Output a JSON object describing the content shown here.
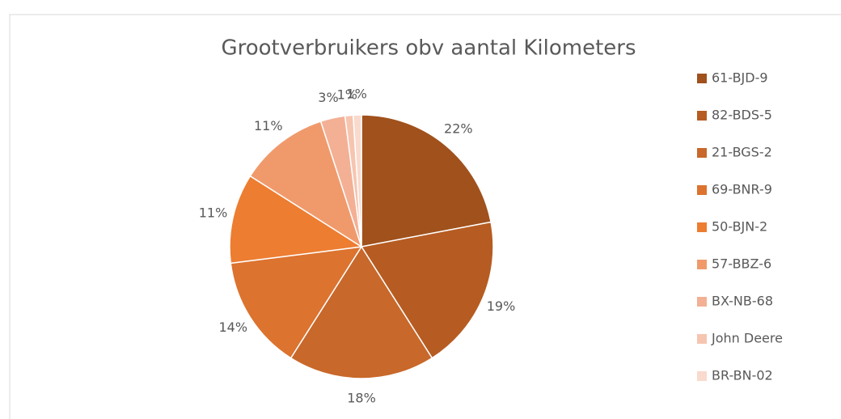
{
  "chart_data": {
    "type": "pie",
    "title": "Grootverbruikers obv aantal Kilometers",
    "categories": [
      "61-BJD-9",
      "82-BDS-5",
      "21-BGS-2",
      "69-BNR-9",
      "50-BJN-2",
      "57-BBZ-6",
      "BX-NB-68",
      "John Deere",
      "BR-BN-02"
    ],
    "values": [
      22,
      19,
      18,
      14,
      11,
      11,
      3,
      1,
      1
    ],
    "value_labels": [
      "22%",
      "19%",
      "18%",
      "14%",
      "11%",
      "11%",
      "3%",
      "1%",
      "1%"
    ],
    "colors": [
      "#a0511c",
      "#b65c22",
      "#c8682a",
      "#dc732f",
      "#ed7d31",
      "#f09a6c",
      "#f3b094",
      "#f6c5b0",
      "#f9dacd"
    ],
    "legend": "right"
  }
}
